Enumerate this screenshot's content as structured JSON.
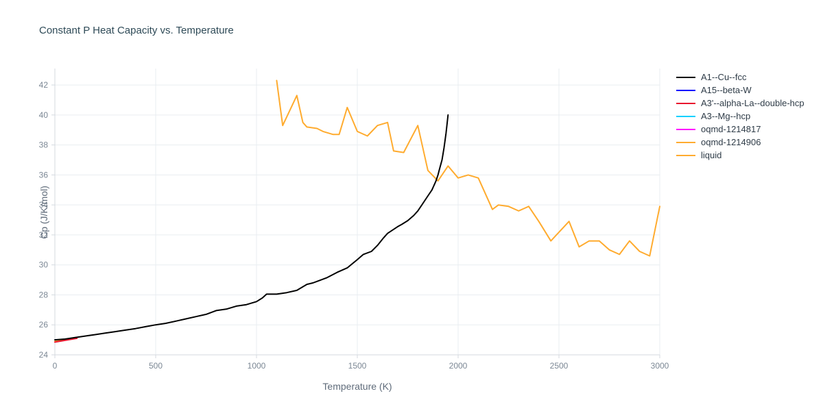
{
  "chart_data": {
    "type": "line",
    "title": "Constant P Heat Capacity vs. Temperature",
    "xlabel": "Temperature (K)",
    "ylabel": "Cp (J/K/mol)",
    "xlim": [
      0,
      3000
    ],
    "ylim": [
      24,
      43.1
    ],
    "xticks": [
      0,
      500,
      1000,
      1500,
      2000,
      2500,
      3000
    ],
    "yticks": [
      24,
      26,
      28,
      30,
      32,
      34,
      36,
      38,
      40,
      42
    ],
    "grid": true,
    "legend_position": "right",
    "colors": {
      "grid": "#e9edf1",
      "axis": "#d4dadf",
      "tick_text": "#7b8794",
      "title_text": "#2e4a57"
    },
    "series": [
      {
        "name": "A1--Cu--fcc",
        "color": "#000000",
        "points": [
          [
            0,
            25.0
          ],
          [
            50,
            25.05
          ],
          [
            100,
            25.15
          ],
          [
            150,
            25.25
          ],
          [
            200,
            25.35
          ],
          [
            250,
            25.45
          ],
          [
            300,
            25.55
          ],
          [
            350,
            25.65
          ],
          [
            400,
            25.75
          ],
          [
            450,
            25.88
          ],
          [
            500,
            26.0
          ],
          [
            550,
            26.1
          ],
          [
            600,
            26.25
          ],
          [
            650,
            26.4
          ],
          [
            700,
            26.55
          ],
          [
            750,
            26.7
          ],
          [
            800,
            26.95
          ],
          [
            850,
            27.05
          ],
          [
            900,
            27.25
          ],
          [
            950,
            27.35
          ],
          [
            1000,
            27.55
          ],
          [
            1030,
            27.8
          ],
          [
            1050,
            28.05
          ],
          [
            1100,
            28.05
          ],
          [
            1150,
            28.15
          ],
          [
            1200,
            28.3
          ],
          [
            1250,
            28.7
          ],
          [
            1280,
            28.8
          ],
          [
            1300,
            28.9
          ],
          [
            1350,
            29.15
          ],
          [
            1400,
            29.5
          ],
          [
            1450,
            29.8
          ],
          [
            1500,
            30.35
          ],
          [
            1530,
            30.7
          ],
          [
            1570,
            30.9
          ],
          [
            1600,
            31.3
          ],
          [
            1630,
            31.8
          ],
          [
            1650,
            32.1
          ],
          [
            1700,
            32.55
          ],
          [
            1720,
            32.7
          ],
          [
            1750,
            32.95
          ],
          [
            1780,
            33.3
          ],
          [
            1800,
            33.6
          ],
          [
            1820,
            34.0
          ],
          [
            1850,
            34.6
          ],
          [
            1870,
            35.0
          ],
          [
            1890,
            35.6
          ],
          [
            1900,
            36.0
          ],
          [
            1910,
            36.5
          ],
          [
            1920,
            37.0
          ],
          [
            1930,
            37.8
          ],
          [
            1940,
            38.8
          ],
          [
            1950,
            40.0
          ]
        ]
      },
      {
        "name": "A15--beta-W",
        "color": "#0000ff",
        "points": []
      },
      {
        "name": "A3'--alpha-La--double-hcp",
        "color": "#e8112d",
        "points": [
          [
            0,
            24.85
          ],
          [
            110,
            25.1
          ]
        ]
      },
      {
        "name": "A3--Mg--hcp",
        "color": "#00d0ff",
        "points": []
      },
      {
        "name": "oqmd-1214817",
        "color": "#ff00ff",
        "points": []
      },
      {
        "name": "oqmd-1214906",
        "color": "#ffab2e",
        "points": [
          [
            0,
            24.9
          ],
          [
            80,
            25.05
          ]
        ]
      },
      {
        "name": "liquid",
        "color": "#ffab2e",
        "points": [
          [
            1100,
            42.3
          ],
          [
            1130,
            39.3
          ],
          [
            1200,
            41.3
          ],
          [
            1230,
            39.5
          ],
          [
            1250,
            39.2
          ],
          [
            1300,
            39.1
          ],
          [
            1330,
            38.9
          ],
          [
            1380,
            38.7
          ],
          [
            1410,
            38.7
          ],
          [
            1450,
            40.5
          ],
          [
            1500,
            38.9
          ],
          [
            1550,
            38.6
          ],
          [
            1600,
            39.3
          ],
          [
            1650,
            39.5
          ],
          [
            1680,
            37.6
          ],
          [
            1730,
            37.5
          ],
          [
            1800,
            39.3
          ],
          [
            1850,
            36.3
          ],
          [
            1900,
            35.6
          ],
          [
            1950,
            36.6
          ],
          [
            2000,
            35.8
          ],
          [
            2050,
            36.0
          ],
          [
            2100,
            35.8
          ],
          [
            2170,
            33.7
          ],
          [
            2200,
            34.0
          ],
          [
            2250,
            33.9
          ],
          [
            2300,
            33.6
          ],
          [
            2350,
            33.9
          ],
          [
            2400,
            32.9
          ],
          [
            2460,
            31.6
          ],
          [
            2550,
            32.9
          ],
          [
            2600,
            31.2
          ],
          [
            2650,
            31.6
          ],
          [
            2700,
            31.6
          ],
          [
            2750,
            31.0
          ],
          [
            2800,
            30.7
          ],
          [
            2850,
            31.6
          ],
          [
            2900,
            30.9
          ],
          [
            2950,
            30.6
          ],
          [
            3000,
            33.9
          ]
        ]
      }
    ]
  }
}
